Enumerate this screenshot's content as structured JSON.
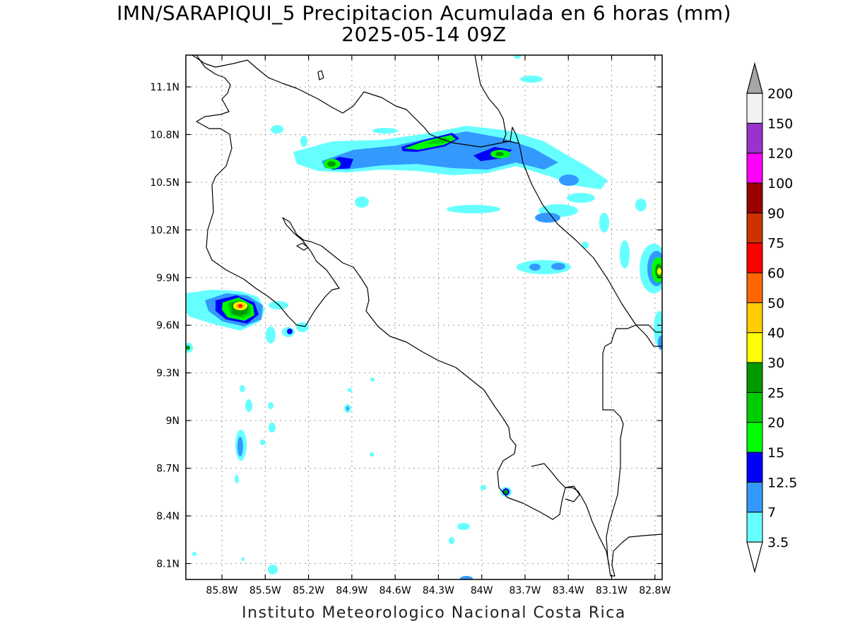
{
  "title": {
    "line1": "IMN/SARAPIQUI_5 Precipitacion Acumulada en 6 horas (mm)",
    "line2": "2025-05-14 09Z"
  },
  "footer": "Instituto Meteorologico Nacional Costa Rica",
  "axes": {
    "lon_range": [
      -86.05,
      -82.75
    ],
    "lat_range": [
      8.0,
      11.3
    ],
    "lon_ticks": [
      -85.8,
      -85.5,
      -85.2,
      -84.9,
      -84.6,
      -84.3,
      -84.0,
      -83.7,
      -83.4,
      -83.1,
      -82.8
    ],
    "lon_tick_labels": [
      "85.8W",
      "85.5W",
      "85.2W",
      "84.9W",
      "84.6W",
      "84.3W",
      "84W",
      "83.7W",
      "83.4W",
      "83.1W",
      "82.8W"
    ],
    "lat_ticks": [
      8.1,
      8.4,
      8.7,
      9.0,
      9.3,
      9.6,
      9.9,
      10.2,
      10.5,
      10.8,
      11.1
    ],
    "lat_tick_labels": [
      "8.1N",
      "8.4N",
      "8.7N",
      "9N",
      "9.3N",
      "9.6N",
      "9.9N",
      "10.2N",
      "10.5N",
      "10.8N",
      "11.1N"
    ],
    "grid": true
  },
  "colorbar": {
    "levels": [
      "3.5",
      "7",
      "12.5",
      "15",
      "20",
      "25",
      "30",
      "40",
      "50",
      "60",
      "75",
      "90",
      "100",
      "120",
      "150",
      "200"
    ],
    "colors": [
      "#66ffff",
      "#3399ff",
      "#0000ff",
      "#00ff00",
      "#00cc00",
      "#009900",
      "#ffff00",
      "#ffcc00",
      "#ff6600",
      "#ff0000",
      "#cc3300",
      "#990000",
      "#ff00ff",
      "#9933cc",
      "#f2f2f2",
      "#a6a6a6"
    ]
  },
  "precip_cells": [
    {
      "lon": -85.58,
      "lat": 9.73,
      "rx": 0.28,
      "ry": 0.1,
      "level": 7
    },
    {
      "lon": -85.57,
      "lat": 9.72,
      "rx": 0.17,
      "ry": 0.075,
      "level": 3
    },
    {
      "lon": -85.56,
      "lat": 9.72,
      "rx": 0.1,
      "ry": 0.045,
      "level": 6
    },
    {
      "lon": -85.55,
      "lat": 9.72,
      "rx": 0.05,
      "ry": 0.025,
      "level": 9
    },
    {
      "lon": -84.85,
      "lat": 10.62,
      "rx": 0.05,
      "ry": 0.03,
      "level": 4
    },
    {
      "lon": -84.15,
      "lat": 10.78,
      "rx": 0.15,
      "ry": 0.04,
      "level": 4
    },
    {
      "lon": -83.8,
      "lat": 10.68,
      "rx": 0.06,
      "ry": 0.03,
      "level": 4
    },
    {
      "lon": -82.8,
      "lat": 9.93,
      "rx": 0.05,
      "ry": 0.06,
      "level": 4
    },
    {
      "lon": -83.65,
      "lat": 8.55,
      "rx": 0.025,
      "ry": 0.025,
      "level": 4
    }
  ]
}
